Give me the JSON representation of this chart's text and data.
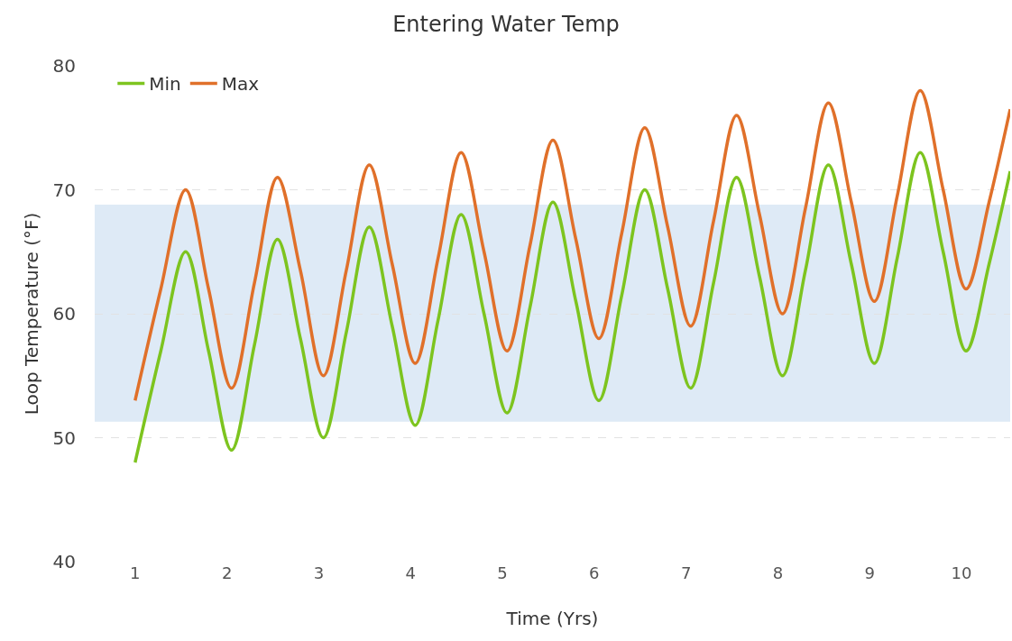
{
  "chart_data": {
    "type": "line",
    "title": "Entering Water Temp",
    "xlabel": "Time (Yrs)",
    "ylabel": "Loop Temperature (°F)",
    "x": [
      1,
      1.28,
      1.55,
      1.8,
      2.05,
      2.3,
      2.55,
      2.8,
      3.05,
      3.3,
      3.55,
      3.8,
      4.05,
      4.3,
      4.55,
      4.8,
      5.05,
      5.3,
      5.55,
      5.8,
      6.05,
      6.3,
      6.55,
      6.8,
      7.05,
      7.3,
      7.55,
      7.8,
      8.05,
      8.3,
      8.55,
      8.8,
      9.05,
      9.3,
      9.55,
      9.8,
      10.05,
      10.3,
      10.53
    ],
    "series": [
      {
        "name": "Min",
        "color": "#7dc41f",
        "values": [
          48,
          57,
          65,
          57,
          49,
          57.5,
          66,
          58,
          50,
          58.5,
          67,
          59,
          51,
          59.5,
          68,
          60,
          52,
          60.5,
          69,
          61,
          53,
          61.5,
          70,
          62,
          54,
          62.5,
          71,
          63,
          55,
          63.5,
          72,
          64,
          56,
          64.5,
          73,
          65,
          57,
          64,
          71.5
        ]
      },
      {
        "name": "Max",
        "color": "#e0702a",
        "values": [
          53,
          62,
          70,
          62,
          54,
          62.5,
          71,
          63.5,
          55,
          63.5,
          72,
          64,
          56,
          64.5,
          73,
          65,
          57,
          65.5,
          74,
          66,
          58,
          66.5,
          75,
          67,
          59,
          67.5,
          76,
          68,
          60,
          68.5,
          77,
          69,
          61,
          69.5,
          78,
          70,
          62,
          69,
          76.5
        ]
      }
    ],
    "xlim": [
      0.56,
      10.53
    ],
    "xticks": [
      1,
      2,
      3,
      4,
      5,
      6,
      7,
      8,
      9,
      10
    ],
    "ylim": [
      40,
      80
    ],
    "yticks": [
      40,
      50,
      60,
      70,
      80
    ],
    "bands": [
      {
        "axis": "y",
        "from": 51.3,
        "to": 68.8,
        "color": "#deeaf6"
      }
    ],
    "grid": "y",
    "legend": "top left",
    "marker": "none",
    "line_style": "solid"
  }
}
